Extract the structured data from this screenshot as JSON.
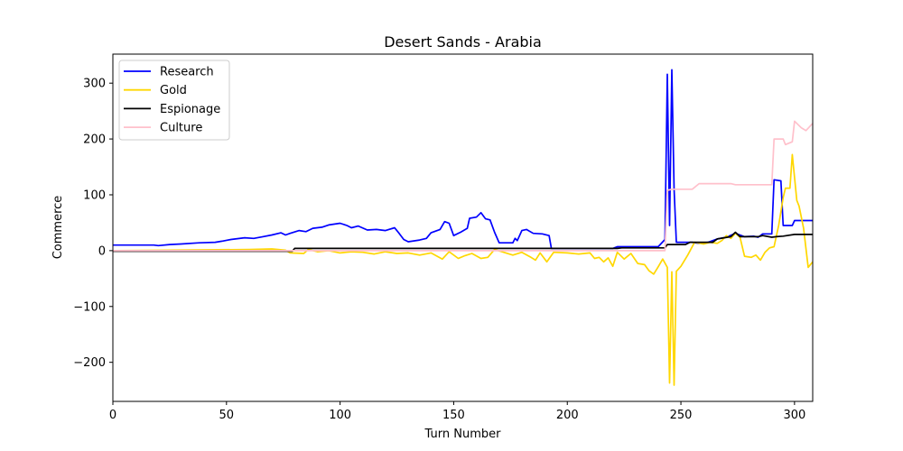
{
  "chart_data": {
    "type": "line",
    "title": "Desert Sands - Arabia",
    "xlabel": "Turn Number",
    "ylabel": "Commerce",
    "xlim": [
      0,
      308
    ],
    "ylim": [
      -270,
      352
    ],
    "xticks": [
      0,
      50,
      100,
      150,
      200,
      250,
      300
    ],
    "yticks": [
      -200,
      -100,
      0,
      100,
      200,
      300
    ],
    "grid": false,
    "legend_position": "top-left",
    "series": [
      {
        "name": "Research",
        "color": "#0000ff",
        "points": [
          [
            0,
            10
          ],
          [
            18,
            10
          ],
          [
            20,
            9
          ],
          [
            25,
            11
          ],
          [
            30,
            12
          ],
          [
            38,
            14
          ],
          [
            45,
            15
          ],
          [
            48,
            17
          ],
          [
            52,
            20
          ],
          [
            58,
            23
          ],
          [
            62,
            22
          ],
          [
            66,
            25
          ],
          [
            70,
            28
          ],
          [
            74,
            32
          ],
          [
            76,
            28
          ],
          [
            78,
            31
          ],
          [
            82,
            36
          ],
          [
            85,
            34
          ],
          [
            88,
            40
          ],
          [
            92,
            42
          ],
          [
            95,
            46
          ],
          [
            100,
            49
          ],
          [
            103,
            45
          ],
          [
            105,
            41
          ],
          [
            108,
            44
          ],
          [
            112,
            37
          ],
          [
            116,
            38
          ],
          [
            120,
            36
          ],
          [
            124,
            41
          ],
          [
            126,
            31
          ],
          [
            128,
            20
          ],
          [
            130,
            16
          ],
          [
            135,
            19
          ],
          [
            138,
            22
          ],
          [
            140,
            32
          ],
          [
            144,
            38
          ],
          [
            146,
            52
          ],
          [
            148,
            49
          ],
          [
            150,
            27
          ],
          [
            153,
            33
          ],
          [
            156,
            40
          ],
          [
            157,
            58
          ],
          [
            160,
            60
          ],
          [
            162,
            68
          ],
          [
            164,
            57
          ],
          [
            166,
            55
          ],
          [
            168,
            33
          ],
          [
            170,
            14
          ],
          [
            176,
            14
          ],
          [
            177,
            22
          ],
          [
            178,
            18
          ],
          [
            180,
            36
          ],
          [
            182,
            38
          ],
          [
            185,
            31
          ],
          [
            189,
            30
          ],
          [
            192,
            27
          ],
          [
            193,
            4
          ],
          [
            220,
            4
          ],
          [
            222,
            7
          ],
          [
            240,
            7
          ],
          [
            243,
            20
          ],
          [
            244,
            316
          ],
          [
            245,
            45
          ],
          [
            246,
            324
          ],
          [
            247,
            110
          ],
          [
            248,
            15
          ],
          [
            255,
            15
          ],
          [
            258,
            13
          ],
          [
            262,
            15
          ],
          [
            266,
            21
          ],
          [
            270,
            24
          ],
          [
            274,
            31
          ],
          [
            278,
            25
          ],
          [
            282,
            26
          ],
          [
            284,
            24
          ],
          [
            286,
            30
          ],
          [
            290,
            30
          ],
          [
            291,
            127
          ],
          [
            294,
            125
          ],
          [
            295,
            45
          ],
          [
            299,
            45
          ],
          [
            300,
            54
          ],
          [
            308,
            54
          ]
        ]
      },
      {
        "name": "Gold",
        "color": "#ffd700",
        "points": [
          [
            0,
            0
          ],
          [
            60,
            2
          ],
          [
            70,
            3
          ],
          [
            76,
            1
          ],
          [
            78,
            -4
          ],
          [
            84,
            -5
          ],
          [
            86,
            2
          ],
          [
            90,
            -2
          ],
          [
            95,
            0
          ],
          [
            100,
            -4
          ],
          [
            105,
            -2
          ],
          [
            110,
            -3
          ],
          [
            115,
            -6
          ],
          [
            120,
            -2
          ],
          [
            125,
            -5
          ],
          [
            130,
            -4
          ],
          [
            135,
            -8
          ],
          [
            140,
            -4
          ],
          [
            145,
            -15
          ],
          [
            148,
            -2
          ],
          [
            152,
            -14
          ],
          [
            155,
            -9
          ],
          [
            158,
            -5
          ],
          [
            162,
            -14
          ],
          [
            165,
            -12
          ],
          [
            168,
            2
          ],
          [
            172,
            -3
          ],
          [
            176,
            -8
          ],
          [
            180,
            -3
          ],
          [
            184,
            -12
          ],
          [
            186,
            -17
          ],
          [
            188,
            -4
          ],
          [
            191,
            -20
          ],
          [
            194,
            -3
          ],
          [
            200,
            -4
          ],
          [
            205,
            -6
          ],
          [
            210,
            -4
          ],
          [
            212,
            -14
          ],
          [
            214,
            -12
          ],
          [
            216,
            -20
          ],
          [
            218,
            -13
          ],
          [
            220,
            -28
          ],
          [
            222,
            -3
          ],
          [
            225,
            -15
          ],
          [
            228,
            -5
          ],
          [
            231,
            -23
          ],
          [
            234,
            -25
          ],
          [
            236,
            -36
          ],
          [
            238,
            -42
          ],
          [
            240,
            -29
          ],
          [
            242,
            -15
          ],
          [
            244,
            -30
          ],
          [
            245,
            -237
          ],
          [
            246,
            -38
          ],
          [
            247,
            -241
          ],
          [
            248,
            -37
          ],
          [
            250,
            -28
          ],
          [
            253,
            -8
          ],
          [
            256,
            15
          ],
          [
            260,
            12
          ],
          [
            263,
            15
          ],
          [
            266,
            13
          ],
          [
            268,
            18
          ],
          [
            270,
            27
          ],
          [
            272,
            22
          ],
          [
            274,
            31
          ],
          [
            276,
            24
          ],
          [
            278,
            -10
          ],
          [
            281,
            -12
          ],
          [
            283,
            -8
          ],
          [
            285,
            -17
          ],
          [
            287,
            -3
          ],
          [
            289,
            5
          ],
          [
            291,
            7
          ],
          [
            293,
            45
          ],
          [
            295,
            95
          ],
          [
            296,
            112
          ],
          [
            298,
            112
          ],
          [
            299,
            172
          ],
          [
            301,
            90
          ],
          [
            302,
            80
          ],
          [
            304,
            40
          ],
          [
            306,
            -30
          ],
          [
            308,
            -20
          ]
        ]
      },
      {
        "name": "Espionage",
        "color": "#000000",
        "points": [
          [
            0,
            -1
          ],
          [
            79,
            -1
          ],
          [
            80,
            4
          ],
          [
            222,
            4
          ],
          [
            224,
            5
          ],
          [
            243,
            5
          ],
          [
            244,
            11
          ],
          [
            252,
            11
          ],
          [
            254,
            15
          ],
          [
            264,
            15
          ],
          [
            266,
            21
          ],
          [
            272,
            25
          ],
          [
            274,
            33
          ],
          [
            276,
            25
          ],
          [
            284,
            25
          ],
          [
            286,
            27
          ],
          [
            290,
            24
          ],
          [
            292,
            25
          ],
          [
            295,
            26
          ],
          [
            300,
            29
          ],
          [
            308,
            29
          ]
        ]
      },
      {
        "name": "Culture",
        "color": "#ffc0cb",
        "points": [
          [
            0,
            0
          ],
          [
            243,
            0
          ],
          [
            244,
            108
          ],
          [
            246,
            110
          ],
          [
            255,
            110
          ],
          [
            258,
            120
          ],
          [
            272,
            120
          ],
          [
            274,
            118
          ],
          [
            290,
            118
          ],
          [
            291,
            200
          ],
          [
            295,
            200
          ],
          [
            296,
            190
          ],
          [
            299,
            195
          ],
          [
            300,
            232
          ],
          [
            303,
            220
          ],
          [
            305,
            215
          ],
          [
            308,
            228
          ]
        ]
      }
    ]
  }
}
